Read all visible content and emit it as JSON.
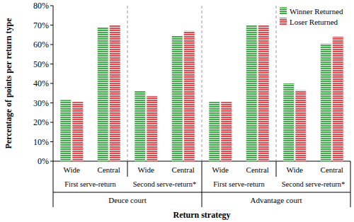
{
  "chart_data": {
    "type": "bar",
    "x_label": "Return strategy",
    "y_label": "Percentage of points per return type",
    "categories": [
      "Wide",
      "Central",
      "Wide",
      "Central",
      "Wide",
      "Central",
      "Wide",
      "Central"
    ],
    "category_groups": [
      "First serve-return",
      "Second serve-return*",
      "First serve-return",
      "Second serve-return*"
    ],
    "category_supergroups": [
      "Deuce court",
      "Advantage court"
    ],
    "series": [
      {
        "name": "Winner Returned",
        "color": "#3fae49",
        "values": [
          31.5,
          69,
          36,
          64.5,
          30.5,
          70,
          40,
          60.5
        ]
      },
      {
        "name": "Loser Returned",
        "color": "#e8474c",
        "values": [
          30.5,
          70,
          33.5,
          67,
          30.5,
          70,
          36.5,
          64
        ]
      }
    ],
    "ylim": [
      0,
      80
    ],
    "yticks": [
      {
        "value": 0,
        "label": "0%"
      },
      {
        "value": 10,
        "label": "10%"
      },
      {
        "value": 20,
        "label": "20%"
      },
      {
        "value": 30,
        "label": "30%"
      },
      {
        "value": 40,
        "label": "40%"
      },
      {
        "value": 50,
        "label": "50%"
      },
      {
        "value": 60,
        "label": "60%"
      },
      {
        "value": 70,
        "label": "70%"
      },
      {
        "value": 80,
        "label": "80%"
      }
    ],
    "grid": false,
    "legend": "upper right"
  }
}
